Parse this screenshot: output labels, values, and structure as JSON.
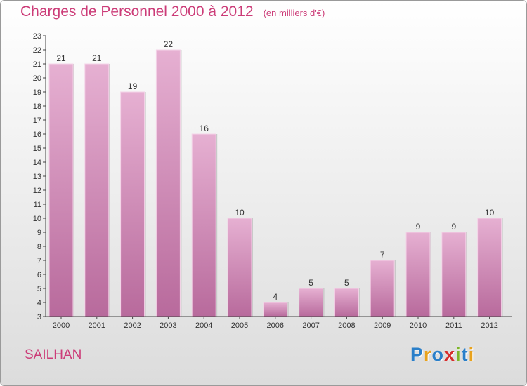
{
  "title": "Charges de Personnel 2000 à 2012",
  "unit": "(en milliers d'€)",
  "commune": "SAILHAN",
  "logo": {
    "letters": [
      {
        "ch": "P",
        "color": "#2a7fc9"
      },
      {
        "ch": "r",
        "color": "#e8a21d"
      },
      {
        "ch": "o",
        "color": "#2a7fc9"
      },
      {
        "ch": "x",
        "color": "#d62d2d"
      },
      {
        "ch": "i",
        "color": "#7db52a"
      },
      {
        "ch": "t",
        "color": "#2a7fc9"
      },
      {
        "ch": "i",
        "color": "#e8a21d"
      }
    ]
  },
  "colors": {
    "bar": "#e0a8cc",
    "bar_dark": "#b86a9c",
    "accent": "#cc3c78"
  },
  "chart_data": {
    "type": "bar",
    "title": "Charges de Personnel 2000 à 2012",
    "subtitle": "(en milliers d'€)",
    "xlabel": "",
    "ylabel": "",
    "categories": [
      "2000",
      "2001",
      "2002",
      "2003",
      "2004",
      "2005",
      "2006",
      "2007",
      "2008",
      "2009",
      "2010",
      "2011",
      "2012"
    ],
    "values": [
      21,
      21,
      19,
      22,
      16,
      10,
      4,
      5,
      5,
      7,
      9,
      9,
      10
    ],
    "ylim": [
      3,
      23
    ],
    "yticks": [
      3,
      4,
      5,
      6,
      7,
      8,
      9,
      10,
      11,
      12,
      13,
      14,
      15,
      16,
      17,
      18,
      19,
      20,
      21,
      22,
      23
    ],
    "grid": false,
    "legend": "none"
  }
}
